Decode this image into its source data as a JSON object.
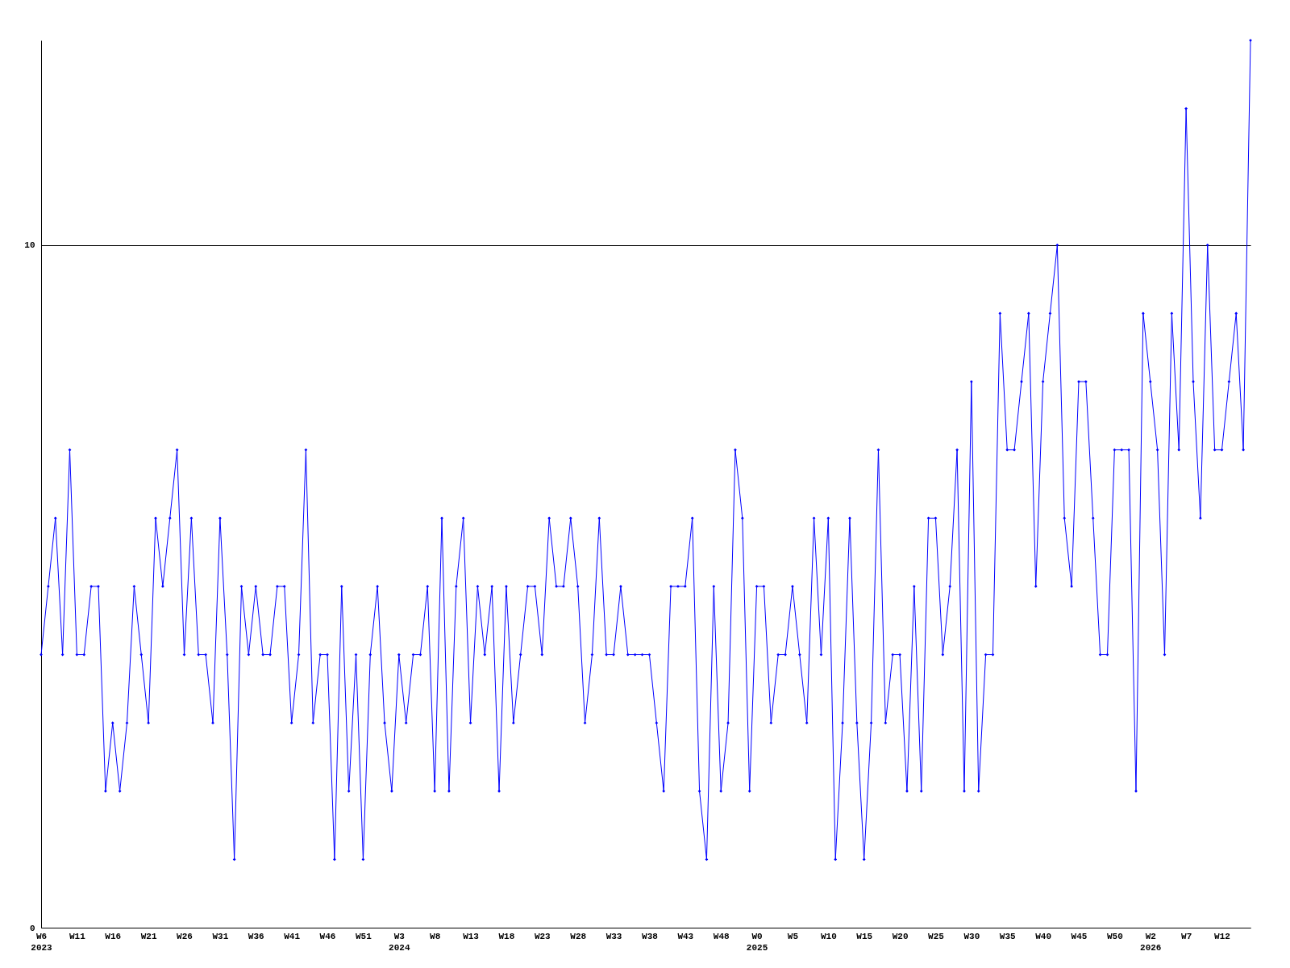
{
  "chart_data": {
    "type": "line",
    "categories": [
      "W6\n2023",
      null,
      null,
      null,
      null,
      "W11",
      null,
      null,
      null,
      null,
      "W16",
      null,
      null,
      null,
      null,
      "W21",
      null,
      null,
      null,
      null,
      "W26",
      null,
      null,
      null,
      null,
      "W31",
      null,
      null,
      null,
      null,
      "W36",
      null,
      null,
      null,
      null,
      "W41",
      null,
      null,
      null,
      null,
      "W46",
      null,
      null,
      null,
      null,
      "W51",
      null,
      null,
      null,
      null,
      "W3\n2024",
      null,
      null,
      null,
      null,
      "W8",
      null,
      null,
      null,
      null,
      "W13",
      null,
      null,
      null,
      null,
      "W18",
      null,
      null,
      null,
      null,
      "W23",
      null,
      null,
      null,
      null,
      "W28",
      null,
      null,
      null,
      null,
      "W33",
      null,
      null,
      null,
      null,
      "W38",
      null,
      null,
      null,
      null,
      "W43",
      null,
      null,
      null,
      null,
      "W48",
      null,
      null,
      null,
      null,
      "W0\n2025",
      null,
      null,
      null,
      null,
      "W5",
      null,
      null,
      null,
      null,
      "W10",
      null,
      null,
      null,
      null,
      "W15",
      null,
      null,
      null,
      null,
      "W20",
      null,
      null,
      null,
      null,
      "W25",
      null,
      null,
      null,
      null,
      "W30",
      null,
      null,
      null,
      null,
      "W35",
      null,
      null,
      null,
      null,
      "W40",
      null,
      null,
      null,
      null,
      "W45",
      null,
      null,
      null,
      null,
      "W50",
      null,
      null,
      null,
      null,
      "W2\n2026",
      null,
      null,
      null,
      null,
      "W7",
      null,
      null,
      null,
      null,
      "W12",
      null,
      null,
      null,
      null
    ],
    "series": [
      {
        "color": "#0000ff",
        "values": [
          4,
          5,
          6,
          4,
          7,
          4,
          4,
          5,
          5,
          2,
          3,
          2,
          3,
          5,
          4,
          3,
          6,
          5,
          6,
          7,
          4,
          6,
          4,
          4,
          3,
          6,
          4,
          1,
          5,
          4,
          5,
          4,
          4,
          5,
          5,
          3,
          4,
          7,
          3,
          4,
          4,
          1,
          5,
          2,
          4,
          1,
          4,
          5,
          3,
          2,
          4,
          3,
          4,
          4,
          5,
          2,
          6,
          2,
          5,
          6,
          3,
          5,
          4,
          5,
          2,
          5,
          3,
          4,
          5,
          5,
          4,
          6,
          5,
          5,
          6,
          5,
          3,
          4,
          6,
          4,
          4,
          5,
          4,
          4,
          4,
          4,
          3,
          2,
          5,
          5,
          5,
          6,
          2,
          1,
          5,
          2,
          3,
          7,
          6,
          2,
          5,
          5,
          3,
          4,
          4,
          5,
          4,
          3,
          6,
          4,
          6,
          1,
          3,
          6,
          3,
          1,
          3,
          7,
          3,
          4,
          4,
          2,
          5,
          2,
          6,
          6,
          4,
          5,
          7,
          2,
          8,
          2,
          4,
          4,
          9,
          7,
          7,
          8,
          9,
          5,
          8,
          9,
          10,
          6,
          5,
          8,
          8,
          6,
          4,
          4,
          7,
          7,
          7,
          2,
          9,
          8,
          7,
          4,
          9,
          7,
          12,
          8,
          6,
          10,
          7,
          7,
          8,
          9,
          7,
          13
        ]
      }
    ],
    "ylim": [
      0,
      13
    ],
    "yticks": [
      0,
      10
    ],
    "grid": "y",
    "marker": "diamond",
    "line_style": "solid"
  }
}
